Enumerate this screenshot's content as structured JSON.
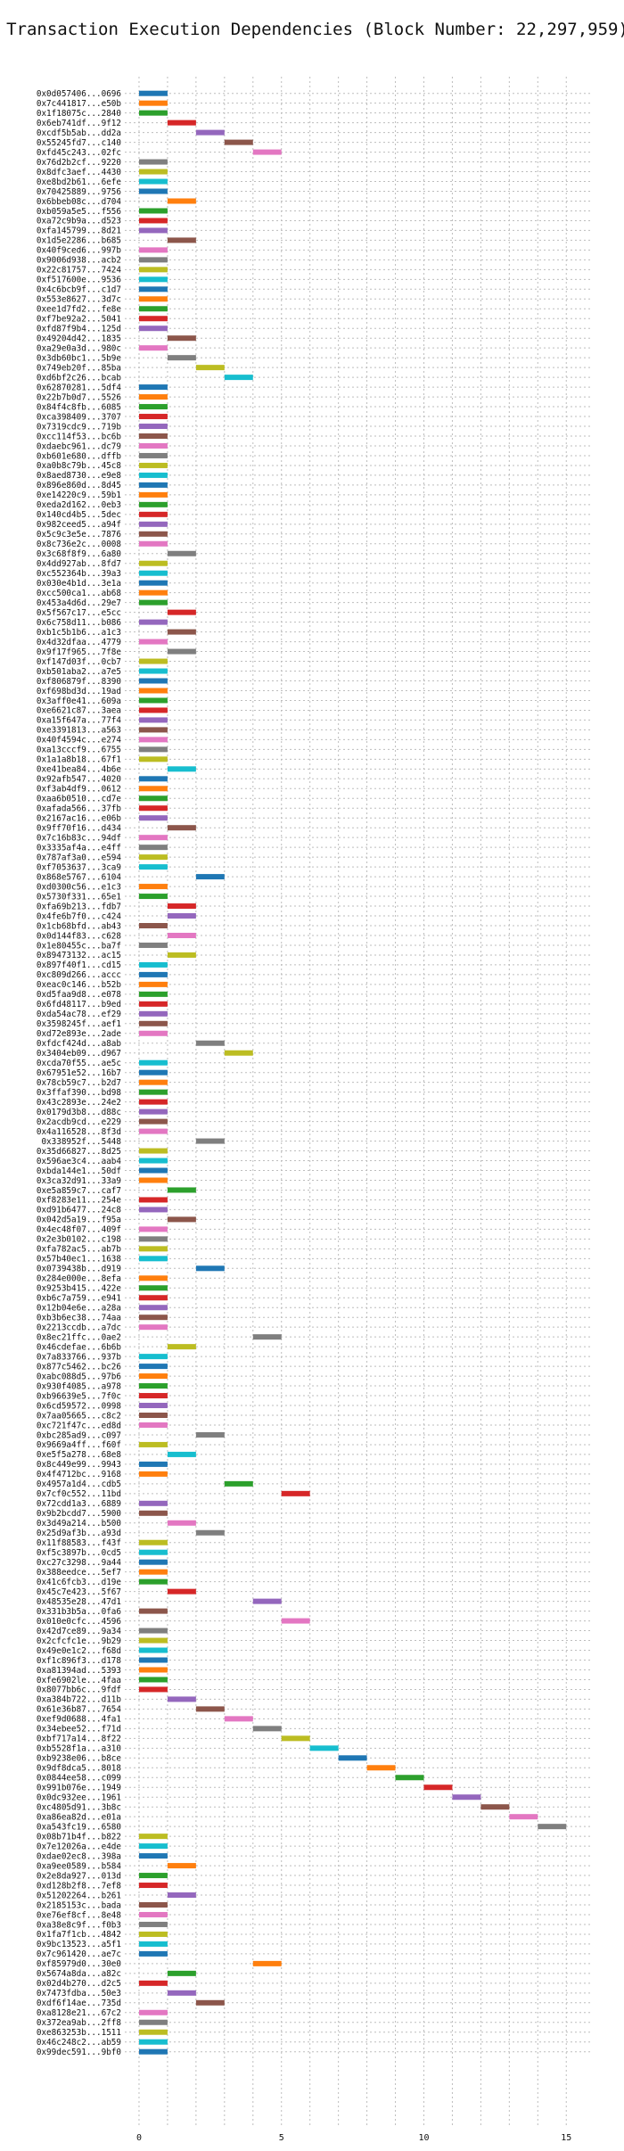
{
  "chart_data": {
    "type": "bar",
    "orientation": "horizontal-gantt",
    "title": "Transaction Execution Dependencies (Block Number: 22,297,959)",
    "xlabel": "",
    "ylabel": "",
    "xlim": [
      -0.5,
      15.9
    ],
    "xticks": [
      0,
      5,
      10,
      15
    ],
    "grid": true,
    "palette": [
      "#1f77b4",
      "#ff7f0e",
      "#2ca02c",
      "#d62728",
      "#9467bd",
      "#8c564b",
      "#e377c2",
      "#7f7f7f",
      "#bcbd22",
      "#17becf"
    ],
    "transactions": [
      "0x0d057406...0696",
      "0x7c441817...e50b",
      "0x1f18075c...2840",
      "0x6eb741df...9f12",
      "0xcdf5b5ab...dd2a",
      "0x55245fd7...c140",
      "0xfd45c243...02fc",
      "0x76d2b2cf...9220",
      "0x8dfc3aef...4430",
      "0xe8bd2b61...6efe",
      "0x70425889...9756",
      "0x6bbeb08c...d704",
      "0xb059a5e5...f556",
      "0xa72c9b9a...d523",
      "0xfa145799...8d21",
      "0x1d5e2286...b685",
      "0x40f9ced6...997b",
      "0x9006d938...acb2",
      "0x22c81757...7424",
      "0xf517600e...9536",
      "0x4c6bcb9f...c1d7",
      "0x553e8627...3d7c",
      "0xee1d7fd2...fe8e",
      "0xf7be92a2...5041",
      "0xfd87f9b4...125d",
      "0x49204d42...1835",
      "0xa29e0a3d...980c",
      "0x3db60bc1...5b9e",
      "0x749eb20f...85ba",
      "0xd6bf2c26...bcab",
      "0x62870281...5df4",
      "0x22b7b0d7...5526",
      "0x84f4c8fb...6085",
      "0xca398409...3707",
      "0x7319cdc9...719b",
      "0xcc114f53...bc6b",
      "0xdaebc961...dc79",
      "0xb601e680...dffb",
      "0xa0b8c79b...45c8",
      "0x8aed8730...e9e8",
      "0x896e860d...8d45",
      "0xe14220c9...59b1",
      "0xeda2d162...0eb3",
      "0x140cd4b5...5dec",
      "0x982ceed5...a94f",
      "0x5c9c3e5e...7876",
      "0x8c736e2c...0008",
      "0x3c68f8f9...6a80",
      "0x4dd927ab...8fd7",
      "0xc552364b...39a3",
      "0x030e4b1d...3e1a",
      "0xcc500ca1...ab68",
      "0x453a4d6d...29e7",
      "0x5f567c17...e5cc",
      "0x6c758d11...b086",
      "0xb1c5b1b6...a1c3",
      "0x4d32dfaa...4779",
      "0x9f17f965...7f8e",
      "0xf147d03f...0cb7",
      "0xb501aba2...a7e5",
      "0xf806879f...8390",
      "0xf698bd3d...19ad",
      "0x3aff0e41...609a",
      "0xe6621c87...3aea",
      "0xa15f647a...77f4",
      "0xe3391813...a563",
      "0x40f4594c...e274",
      "0xa13cccf9...6755",
      "0x1a1a8b18...67f1",
      "0xe41bea84...4b6e",
      "0x92afb547...4020",
      "0xf3ab4df9...0612",
      "0xaa6b0510...cd7e",
      "0xafada566...37fb",
      "0x2167ac16...e06b",
      "0x9ff70f16...d434",
      "0x7c16b83c...94df",
      "0x3335af4a...e4ff",
      "0x787af3a0...e594",
      "0xf7053637...3ca9",
      "0x868e5767...6104",
      "0xd0300c56...e1c3",
      "0x5730f331...65e1",
      "0xfa69b213...fdb7",
      "0x4fe6b7f0...c424",
      "0x1cb68bfd...ab43",
      "0x0d144f83...c628",
      "0x1e80455c...ba7f",
      "0x89473132...ac15",
      "0x897f40f1...cd15",
      "0xc809d266...accc",
      "0xeac0c146...b52b",
      "0xd5faa9d8...e078",
      "0x6fd48117...b9ed",
      "0xda54ac78...ef29",
      "0x3598245f...aef1",
      "0xd72e893e...2ade",
      "0xfdcf424d...a8ab",
      "0x3404eb09...d967",
      "0xcda70f55...ae5c",
      "0x67951e52...16b7",
      "0x78cb59c7...b2d7",
      "0x3ffaf390...bd98",
      "0x43c2893e...24e2",
      "0x0179d3b8...d88c",
      "0x2acdb9cd...e229",
      "0x4a116528...8f3d",
      "0x338952f...5448",
      "0x35d66827...8d25",
      "0x596ae3c4...aab4",
      "0xbda144e1...50df",
      "0x3ca32d91...33a9",
      "0xe5a859c7...caf7",
      "0xf8283e11...254e",
      "0xd91b6477...24c8",
      "0x042d5a19...f95a",
      "0x4ec48f07...409f",
      "0x2e3b0102...c198",
      "0xfa782ac5...ab7b",
      "0x57b40ec1...1638",
      "0x0739438b...d919",
      "0x284e000e...8efa",
      "0x9253b415...422e",
      "0xb6c7a759...e941",
      "0x12b04e6e...a28a",
      "0xb3b6ec38...74aa",
      "0x2213ccdb...a7dc",
      "0x8ec21ffc...0ae2",
      "0x46cdefae...6b6b",
      "0x7a833766...937b",
      "0x877c5462...bc26",
      "0xabc088d5...97b6",
      "0x930f4085...a978",
      "0xb96639e5...7f0c",
      "0x6cd59572...0998",
      "0x7aa05665...c8c2",
      "0xc721f47c...ed8d",
      "0xbc285ad9...c097",
      "0x9669a4ff...f60f",
      "0xe5f5a278...68e8",
      "0x8c449e99...9943",
      "0x4f4712bc...9168",
      "0x4957a1d4...cdb5",
      "0x7cf0c552...11bd",
      "0x72cdd1a3...6889",
      "0x9b2bcdd7...5900",
      "0x3d49a214...b500",
      "0x25d9af3b...a93d",
      "0x11f88583...f43f",
      "0xf5c3897b...0cd5",
      "0xc27c3298...9a44",
      "0x388eedce...5ef7",
      "0x41c6fcb3...d19e",
      "0x45c7e423...5f67",
      "0x48535e28...47d1",
      "0x331b3b5a...0fa6",
      "0x010e0cfc...4596",
      "0x42d7ce89...9a34",
      "0x2cfcfc1e...9b29",
      "0x49e0e1c2...f68d",
      "0xf1c896f3...d178",
      "0xa81394ad...5393",
      "0xfe6902le...4faa",
      "0x8077bb6c...9fdf",
      "0xa384b722...d11b",
      "0x61e36b87...7654",
      "0xef9d0688...4fa1",
      "0x34ebee52...f71d",
      "0xbf717a14...8f22",
      "0xb5528f1a...a310",
      "0xb9238e06...b8ce",
      "0x9df8dca5...8018",
      "0x0844ee58...c099",
      "0x991b076e...1949",
      "0x0dc932ee...1961",
      "0xc4805d91...3b8c",
      "0xa86ea82d...e01a",
      "0xa543fc19...6580",
      "0x08b71b4f...b822",
      "0x7e12026a...e4de",
      "0xdae02ec8...398a",
      "0xa9ee0589...b584",
      "0x2e8da927...013d",
      "0xd128b2f8...7ef8",
      "0x51202264...b261",
      "0x2185153c...bada",
      "0xe76ef8cf...8e48",
      "0xa38e8c9f...f0b3",
      "0x1fa7f1cb...4842",
      "0x9bc13523...a5f1",
      "0x7c961420...ae7c",
      "0xf85979d0...30e0",
      "0x5674a8da...a82c",
      "0x02d4b270...d2c5",
      "0x7473fdba...50e3",
      "0xdf6f14ae...735d",
      "0xa8128e21...67c2",
      "0x372ea9ab...2ff8",
      "0xe863253b...1511",
      "0x46c248c2...ab59",
      "0x99dec591...9bf0"
    ],
    "bars": [
      [
        0,
        1
      ],
      [
        0,
        1
      ],
      [
        0,
        1
      ],
      [
        1,
        2
      ],
      [
        2,
        3
      ],
      [
        3,
        4
      ],
      [
        4,
        5
      ],
      [
        0,
        1
      ],
      [
        0,
        1
      ],
      [
        0,
        1
      ],
      [
        0,
        1
      ],
      [
        1,
        2
      ],
      [
        0,
        1
      ],
      [
        0,
        1
      ],
      [
        0,
        1
      ],
      [
        1,
        2
      ],
      [
        0,
        1
      ],
      [
        0,
        1
      ],
      [
        0,
        1
      ],
      [
        0,
        1
      ],
      [
        0,
        1
      ],
      [
        0,
        1
      ],
      [
        0,
        1
      ],
      [
        0,
        1
      ],
      [
        0,
        1
      ],
      [
        1,
        2
      ],
      [
        0,
        1
      ],
      [
        1,
        2
      ],
      [
        2,
        3
      ],
      [
        3,
        4
      ],
      [
        0,
        1
      ],
      [
        0,
        1
      ],
      [
        0,
        1
      ],
      [
        0,
        1
      ],
      [
        0,
        1
      ],
      [
        0,
        1
      ],
      [
        0,
        1
      ],
      [
        0,
        1
      ],
      [
        0,
        1
      ],
      [
        0,
        1
      ],
      [
        0,
        1
      ],
      [
        0,
        1
      ],
      [
        0,
        1
      ],
      [
        0,
        1
      ],
      [
        0,
        1
      ],
      [
        0,
        1
      ],
      [
        0,
        1
      ],
      [
        1,
        2
      ],
      [
        0,
        1
      ],
      [
        0,
        1
      ],
      [
        0,
        1
      ],
      [
        0,
        1
      ],
      [
        0,
        1
      ],
      [
        1,
        2
      ],
      [
        0,
        1
      ],
      [
        1,
        2
      ],
      [
        0,
        1
      ],
      [
        1,
        2
      ],
      [
        0,
        1
      ],
      [
        0,
        1
      ],
      [
        0,
        1
      ],
      [
        0,
        1
      ],
      [
        0,
        1
      ],
      [
        0,
        1
      ],
      [
        0,
        1
      ],
      [
        0,
        1
      ],
      [
        0,
        1
      ],
      [
        0,
        1
      ],
      [
        0,
        1
      ],
      [
        1,
        2
      ],
      [
        0,
        1
      ],
      [
        0,
        1
      ],
      [
        0,
        1
      ],
      [
        0,
        1
      ],
      [
        0,
        1
      ],
      [
        1,
        2
      ],
      [
        0,
        1
      ],
      [
        0,
        1
      ],
      [
        0,
        1
      ],
      [
        0,
        1
      ],
      [
        2,
        3
      ],
      [
        0,
        1
      ],
      [
        0,
        1
      ],
      [
        1,
        2
      ],
      [
        1,
        2
      ],
      [
        0,
        1
      ],
      [
        1,
        2
      ],
      [
        0,
        1
      ],
      [
        1,
        2
      ],
      [
        0,
        1
      ],
      [
        0,
        1
      ],
      [
        0,
        1
      ],
      [
        0,
        1
      ],
      [
        0,
        1
      ],
      [
        0,
        1
      ],
      [
        0,
        1
      ],
      [
        0,
        1
      ],
      [
        2,
        3
      ],
      [
        3,
        4
      ],
      [
        0,
        1
      ],
      [
        0,
        1
      ],
      [
        0,
        1
      ],
      [
        0,
        1
      ],
      [
        0,
        1
      ],
      [
        0,
        1
      ],
      [
        0,
        1
      ],
      [
        0,
        1
      ],
      [
        2,
        3
      ],
      [
        0,
        1
      ],
      [
        0,
        1
      ],
      [
        0,
        1
      ],
      [
        0,
        1
      ],
      [
        1,
        2
      ],
      [
        0,
        1
      ],
      [
        0,
        1
      ],
      [
        1,
        2
      ],
      [
        0,
        1
      ],
      [
        0,
        1
      ],
      [
        0,
        1
      ],
      [
        0,
        1
      ],
      [
        2,
        3
      ],
      [
        0,
        1
      ],
      [
        0,
        1
      ],
      [
        0,
        1
      ],
      [
        0,
        1
      ],
      [
        0,
        1
      ],
      [
        0,
        1
      ],
      [
        4,
        5
      ],
      [
        1,
        2
      ],
      [
        0,
        1
      ],
      [
        0,
        1
      ],
      [
        0,
        1
      ],
      [
        0,
        1
      ],
      [
        0,
        1
      ],
      [
        0,
        1
      ],
      [
        0,
        1
      ],
      [
        0,
        1
      ],
      [
        2,
        3
      ],
      [
        0,
        1
      ],
      [
        1,
        2
      ],
      [
        0,
        1
      ],
      [
        0,
        1
      ],
      [
        3,
        4
      ],
      [
        5,
        6
      ],
      [
        0,
        1
      ],
      [
        0,
        1
      ],
      [
        1,
        2
      ],
      [
        2,
        3
      ],
      [
        0,
        1
      ],
      [
        0,
        1
      ],
      [
        0,
        1
      ],
      [
        0,
        1
      ],
      [
        0,
        1
      ],
      [
        1,
        2
      ],
      [
        4,
        5
      ],
      [
        0,
        1
      ],
      [
        5,
        6
      ],
      [
        0,
        1
      ],
      [
        0,
        1
      ],
      [
        0,
        1
      ],
      [
        0,
        1
      ],
      [
        0,
        1
      ],
      [
        0,
        1
      ],
      [
        0,
        1
      ],
      [
        1,
        2
      ],
      [
        2,
        3
      ],
      [
        3,
        4
      ],
      [
        4,
        5
      ],
      [
        5,
        6
      ],
      [
        6,
        7
      ],
      [
        7,
        8
      ],
      [
        8,
        9
      ],
      [
        9,
        10
      ],
      [
        10,
        11
      ],
      [
        11,
        12
      ],
      [
        12,
        13
      ],
      [
        13,
        14
      ],
      [
        14,
        15
      ],
      [
        0,
        1
      ],
      [
        0,
        1
      ],
      [
        0,
        1
      ],
      [
        1,
        2
      ],
      [
        0,
        1
      ],
      [
        0,
        1
      ],
      [
        1,
        2
      ],
      [
        0,
        1
      ],
      [
        0,
        1
      ],
      [
        0,
        1
      ],
      [
        0,
        1
      ],
      [
        0,
        1
      ],
      [
        0,
        1
      ],
      [
        4,
        5
      ],
      [
        1,
        2
      ],
      [
        0,
        1
      ],
      [
        1,
        2
      ],
      [
        2,
        3
      ],
      [
        0,
        1
      ],
      [
        0,
        1
      ],
      [
        0,
        1
      ],
      [
        0,
        1
      ],
      [
        0,
        1
      ]
    ]
  }
}
